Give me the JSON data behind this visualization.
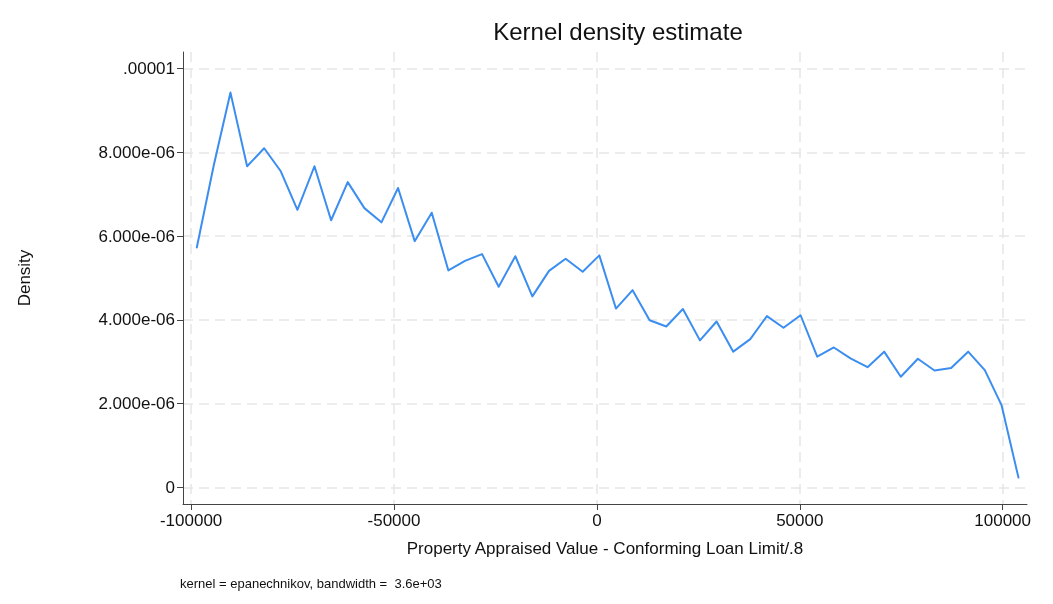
{
  "chart_data": {
    "type": "line",
    "title": "Kernel density estimate",
    "xlabel": "Property Appraised Value - Conforming Loan Limit/.8",
    "ylabel": "Density",
    "annotations": [
      "kernel = epanechnikov, bandwidth =  3.6e+03"
    ],
    "x": [
      -98600,
      -94400,
      -90300,
      -86200,
      -82000,
      -77900,
      -73800,
      -69600,
      -65500,
      -61400,
      -57300,
      -53100,
      -49000,
      -44900,
      -40700,
      -36600,
      -32500,
      -28300,
      -24200,
      -20100,
      -15900,
      -11800,
      -7700,
      -3500,
      600,
      4700,
      8800,
      13000,
      17100,
      21200,
      25400,
      29500,
      33600,
      37800,
      41900,
      46000,
      50200,
      54300,
      58400,
      62500,
      66700,
      70800,
      74900,
      79100,
      83200,
      87300,
      91500,
      95600,
      99700,
      103900
    ],
    "series": [
      {
        "color": "#3b8ef0",
        "values": [
          5.73e-06,
          7.7e-06,
          9.43e-06,
          7.67e-06,
          8.1e-06,
          7.55e-06,
          6.63e-06,
          7.67e-06,
          6.38e-06,
          7.29e-06,
          6.67e-06,
          6.33e-06,
          7.15e-06,
          5.88e-06,
          6.56e-06,
          5.18e-06,
          5.41e-06,
          5.57e-06,
          4.79e-06,
          5.52e-06,
          4.56e-06,
          5.17e-06,
          5.46e-06,
          5.15e-06,
          5.54e-06,
          4.27e-06,
          4.71e-06,
          3.99e-06,
          3.84e-06,
          4.26e-06,
          3.51e-06,
          3.96e-06,
          3.24e-06,
          3.54e-06,
          4.09e-06,
          3.81e-06,
          4.11e-06,
          3.12e-06,
          3.34e-06,
          3.08e-06,
          2.87e-06,
          3.24e-06,
          2.64e-06,
          3.07e-06,
          2.79e-06,
          2.85e-06,
          3.24e-06,
          2.8e-06,
          1.97e-06,
          2.3e-07
        ]
      }
    ],
    "xlim": [
      -102000,
      106000
    ],
    "ylim": [
      -4e-07,
      1.04e-05
    ],
    "xticks": [
      -100000,
      -50000,
      0,
      50000,
      100000
    ],
    "yticks": [
      {
        "value": 0,
        "label": "0"
      },
      {
        "value": 2e-06,
        "label": "2.000e-06"
      },
      {
        "value": 4e-06,
        "label": "4.000e-06"
      },
      {
        "value": 6e-06,
        "label": "6.000e-06"
      },
      {
        "value": 8e-06,
        "label": "8.000e-06"
      },
      {
        "value": 1e-05,
        "label": ".00001"
      }
    ],
    "grid": true,
    "marker": "none",
    "line_style": "solid"
  }
}
